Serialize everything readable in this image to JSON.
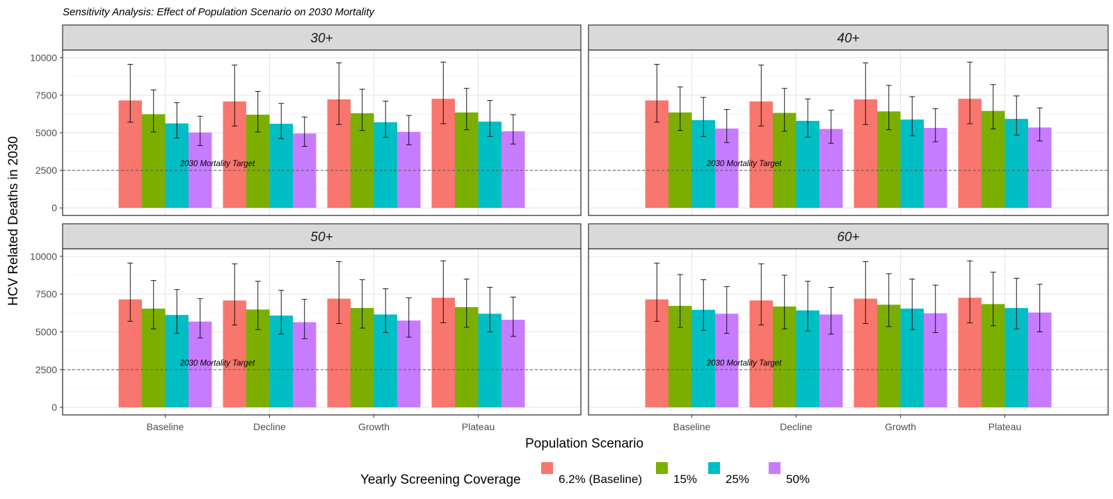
{
  "chart_data": {
    "type": "bar",
    "title": "Sensitivity Analysis: Effect of Population Scenario on 2030 Mortality",
    "xlabel": "Population Scenario",
    "ylabel": "HCV Related Deaths in 2030",
    "categories": [
      "Baseline",
      "Decline",
      "Growth",
      "Plateau"
    ],
    "ylim": [
      -500,
      10500
    ],
    "yticks": [
      0,
      2500,
      5000,
      7500,
      10000
    ],
    "grid": true,
    "legend": {
      "title": "Yearly Screening Coverage",
      "position": "bottom",
      "entries": [
        "6.2% (Baseline)",
        "15%",
        "25%",
        "50%"
      ],
      "colors": [
        "#F8766D",
        "#7CAE00",
        "#00BFC4",
        "#C77CFF"
      ]
    },
    "reference_line": {
      "y": 2500,
      "label": "2030 Mortality Target"
    },
    "panels": [
      {
        "facet": "30+",
        "series": [
          {
            "name": "6.2% (Baseline)",
            "values": [
              7150,
              7080,
              7220,
              7260
            ],
            "lower": [
              5700,
              5450,
              5550,
              5600
            ],
            "upper": [
              9550,
              9500,
              9650,
              9700
            ]
          },
          {
            "name": "15%",
            "values": [
              6230,
              6200,
              6300,
              6350
            ],
            "lower": [
              5050,
              5050,
              5150,
              5200
            ],
            "upper": [
              7850,
              7750,
              7900,
              7950
            ]
          },
          {
            "name": "25%",
            "values": [
              5620,
              5600,
              5700,
              5740
            ],
            "lower": [
              4650,
              4600,
              4700,
              4750
            ],
            "upper": [
              7000,
              6950,
              7100,
              7150
            ]
          },
          {
            "name": "50%",
            "values": [
              5020,
              4950,
              5060,
              5100
            ],
            "lower": [
              4150,
              4100,
              4200,
              4250
            ],
            "upper": [
              6100,
              6050,
              6150,
              6200
            ]
          }
        ]
      },
      {
        "facet": "40+",
        "series": [
          {
            "name": "6.2% (Baseline)",
            "values": [
              7150,
              7080,
              7220,
              7260
            ],
            "lower": [
              5700,
              5450,
              5550,
              5600
            ],
            "upper": [
              9550,
              9500,
              9650,
              9700
            ]
          },
          {
            "name": "15%",
            "values": [
              6350,
              6320,
              6420,
              6450
            ],
            "lower": [
              5150,
              5100,
              5200,
              5250
            ],
            "upper": [
              8050,
              7950,
              8150,
              8200
            ]
          },
          {
            "name": "25%",
            "values": [
              5840,
              5790,
              5880,
              5920
            ],
            "lower": [
              4750,
              4700,
              4800,
              4850
            ],
            "upper": [
              7350,
              7250,
              7400,
              7450
            ]
          },
          {
            "name": "50%",
            "values": [
              5280,
              5250,
              5320,
              5350
            ],
            "lower": [
              4350,
              4300,
              4400,
              4450
            ],
            "upper": [
              6550,
              6500,
              6600,
              6650
            ]
          }
        ]
      },
      {
        "facet": "50+",
        "series": [
          {
            "name": "6.2% (Baseline)",
            "values": [
              7150,
              7080,
              7200,
              7260
            ],
            "lower": [
              5700,
              5450,
              5550,
              5600
            ],
            "upper": [
              9550,
              9500,
              9650,
              9700
            ]
          },
          {
            "name": "15%",
            "values": [
              6540,
              6480,
              6580,
              6640
            ],
            "lower": [
              5200,
              5150,
              5250,
              5300
            ],
            "upper": [
              8400,
              8350,
              8450,
              8500
            ]
          },
          {
            "name": "25%",
            "values": [
              6120,
              6080,
              6150,
              6200
            ],
            "lower": [
              4900,
              4850,
              4950,
              5000
            ],
            "upper": [
              7800,
              7750,
              7850,
              7950
            ]
          },
          {
            "name": "50%",
            "values": [
              5680,
              5640,
              5750,
              5800
            ],
            "lower": [
              4600,
              4550,
              4650,
              4700
            ],
            "upper": [
              7200,
              7150,
              7250,
              7300
            ]
          }
        ]
      },
      {
        "facet": "60+",
        "series": [
          {
            "name": "6.2% (Baseline)",
            "values": [
              7150,
              7080,
              7200,
              7260
            ],
            "lower": [
              5700,
              5450,
              5550,
              5600
            ],
            "upper": [
              9550,
              9500,
              9650,
              9700
            ]
          },
          {
            "name": "15%",
            "values": [
              6720,
              6680,
              6800,
              6840
            ],
            "lower": [
              5300,
              5200,
              5350,
              5400
            ],
            "upper": [
              8800,
              8750,
              8850,
              8950
            ]
          },
          {
            "name": "25%",
            "values": [
              6460,
              6420,
              6540,
              6580
            ],
            "lower": [
              5100,
              5050,
              5150,
              5200
            ],
            "upper": [
              8450,
              8350,
              8500,
              8550
            ]
          },
          {
            "name": "50%",
            "values": [
              6200,
              6150,
              6230,
              6280
            ],
            "lower": [
              4900,
              4850,
              4950,
              5000
            ],
            "upper": [
              8000,
              7950,
              8100,
              8150
            ]
          }
        ]
      }
    ]
  }
}
